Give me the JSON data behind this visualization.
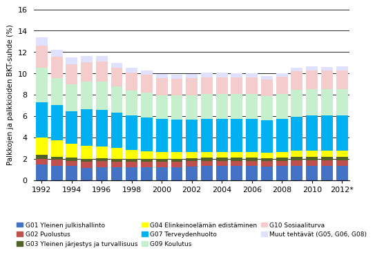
{
  "years": [
    1992,
    1993,
    1994,
    1995,
    1996,
    1997,
    1998,
    1999,
    2000,
    2001,
    2002,
    2003,
    2004,
    2005,
    2006,
    2007,
    2008,
    2009,
    2010,
    2011,
    2012
  ],
  "series": {
    "G01": [
      1.45,
      1.35,
      1.3,
      1.15,
      1.2,
      1.2,
      1.2,
      1.2,
      1.2,
      1.2,
      1.25,
      1.3,
      1.3,
      1.3,
      1.3,
      1.25,
      1.3,
      1.35,
      1.35,
      1.35,
      1.35
    ],
    "G02": [
      0.55,
      0.55,
      0.5,
      0.55,
      0.55,
      0.5,
      0.5,
      0.5,
      0.5,
      0.5,
      0.5,
      0.5,
      0.5,
      0.5,
      0.5,
      0.5,
      0.5,
      0.5,
      0.5,
      0.5,
      0.5
    ],
    "G03": [
      0.35,
      0.3,
      0.3,
      0.3,
      0.3,
      0.3,
      0.3,
      0.3,
      0.3,
      0.3,
      0.3,
      0.3,
      0.3,
      0.3,
      0.3,
      0.3,
      0.3,
      0.3,
      0.3,
      0.3,
      0.3
    ],
    "G04": [
      1.65,
      1.5,
      1.3,
      1.2,
      1.1,
      1.0,
      0.8,
      0.7,
      0.65,
      0.6,
      0.55,
      0.55,
      0.55,
      0.55,
      0.55,
      0.5,
      0.55,
      0.6,
      0.6,
      0.6,
      0.6
    ],
    "G07": [
      3.3,
      3.3,
      3.05,
      3.45,
      3.45,
      3.3,
      3.25,
      3.15,
      3.1,
      3.1,
      3.1,
      3.1,
      3.1,
      3.1,
      3.1,
      3.05,
      3.1,
      3.2,
      3.3,
      3.3,
      3.3
    ],
    "G09": [
      3.25,
      2.55,
      2.55,
      2.55,
      2.65,
      2.5,
      2.35,
      2.35,
      2.2,
      2.25,
      2.25,
      2.3,
      2.3,
      2.3,
      2.3,
      2.3,
      2.3,
      2.5,
      2.5,
      2.5,
      2.5
    ],
    "G10": [
      2.05,
      2.0,
      1.85,
      1.85,
      1.85,
      1.75,
      1.7,
      1.65,
      1.6,
      1.55,
      1.6,
      1.6,
      1.6,
      1.6,
      1.6,
      1.55,
      1.65,
      1.75,
      1.75,
      1.7,
      1.75
    ],
    "Muut": [
      0.75,
      0.65,
      0.65,
      0.6,
      0.55,
      0.45,
      0.4,
      0.4,
      0.4,
      0.4,
      0.4,
      0.4,
      0.4,
      0.35,
      0.35,
      0.3,
      0.3,
      0.35,
      0.35,
      0.35,
      0.35
    ]
  },
  "colors": {
    "G01": "#4472C4",
    "G02": "#C0504D",
    "G03": "#4F6228",
    "G04": "#FFFF00",
    "G07": "#00B0F0",
    "G09": "#C6EFCE",
    "G10": "#F4CCCC",
    "Muut": "#E0E0FF"
  },
  "legend_labels": {
    "G01": "G01 Yleinen julkishallinto",
    "G02": "G02 Puolustus",
    "G03": "G03 Yleinen järjestys ja turvallisuus",
    "G04": "G04 Elinkeinoelämän edistäminen",
    "G07": "G07 Terveydenhuolto",
    "G09": "G09 Koulutus",
    "G10": "G10 Sosiaaliturva",
    "Muut": "Muut tehtävät (G05, G06, G08)"
  },
  "ylabel": "Palkkojen ja palkkioiden BKT-suhde (%)",
  "ylim": [
    0,
    16
  ],
  "yticks": [
    0,
    2,
    4,
    6,
    8,
    10,
    12,
    14,
    16
  ]
}
